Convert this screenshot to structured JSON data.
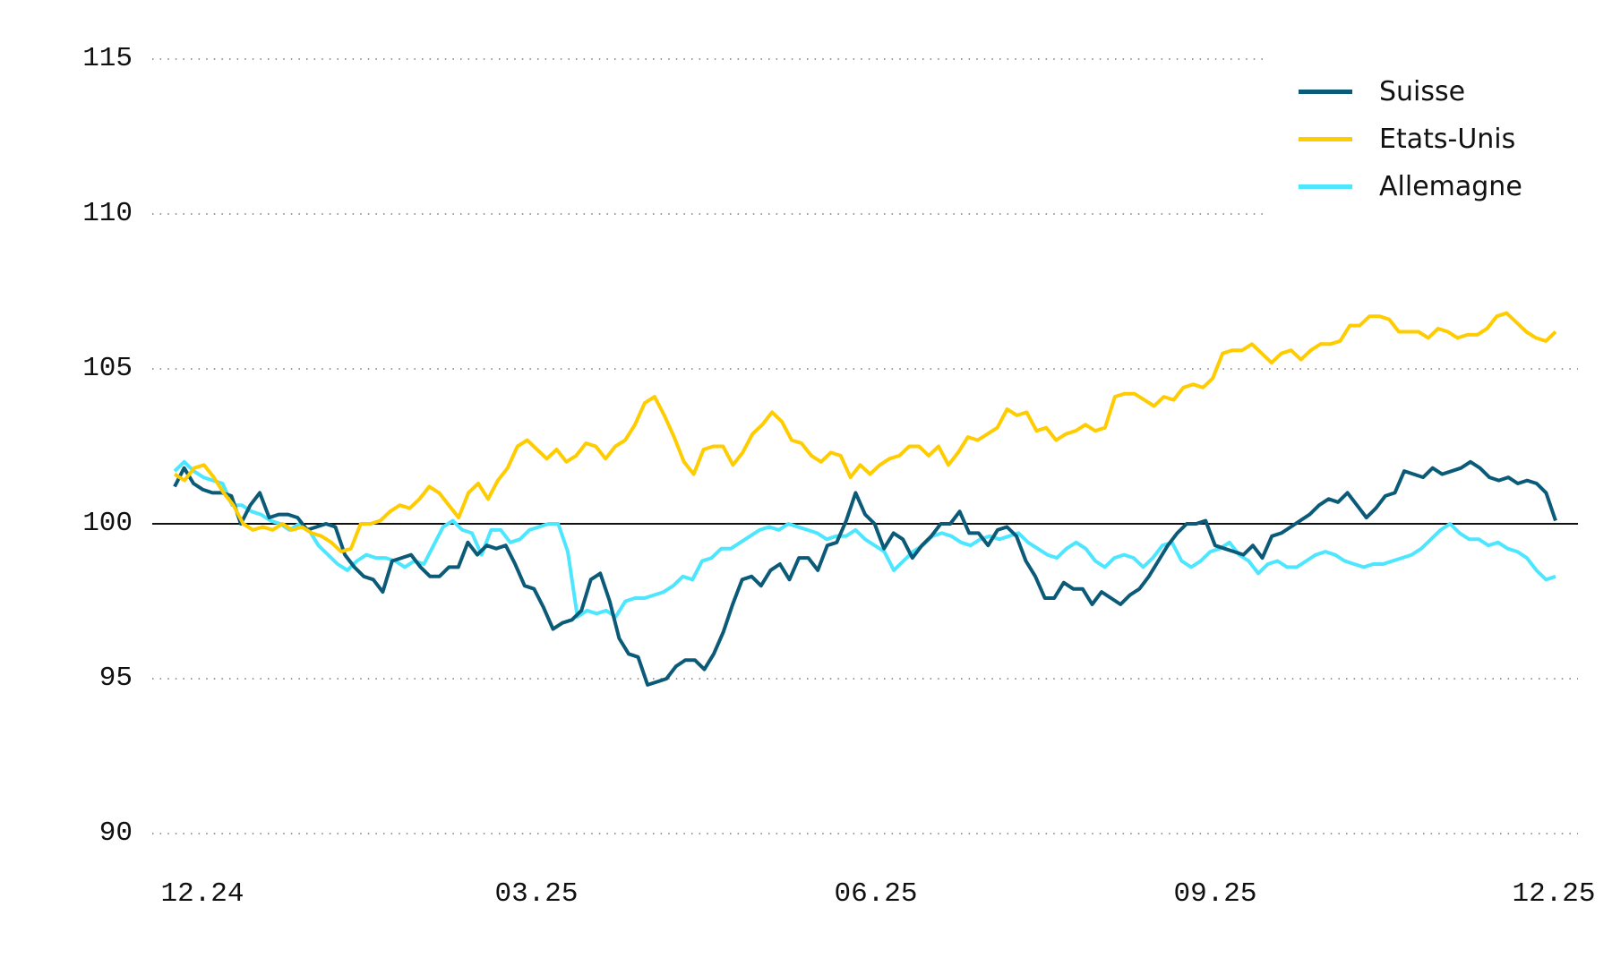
{
  "chart_data": {
    "type": "line",
    "title": "",
    "xlabel": "",
    "ylabel": "",
    "ylim": [
      90,
      115
    ],
    "yticks": [
      90,
      95,
      100,
      105,
      110,
      115
    ],
    "xticks": [
      "12.24",
      "03.25",
      "06.25",
      "09.25",
      "12.25"
    ],
    "reference_line": 100,
    "grid": "dotted horizontal",
    "legend_position": "top-right",
    "x_points": 140,
    "series": [
      {
        "name": "Suisse",
        "color": "#0b5b78",
        "values": [
          101.2,
          101.8,
          101.3,
          101.1,
          101.0,
          101.0,
          100.9,
          100.0,
          100.6,
          101.0,
          100.2,
          100.3,
          100.3,
          100.2,
          99.8,
          99.9,
          100.0,
          99.9,
          99.0,
          98.6,
          98.3,
          98.2,
          97.8,
          98.8,
          98.9,
          99.0,
          98.6,
          98.3,
          98.3,
          98.6,
          98.6,
          99.4,
          99.0,
          99.3,
          99.2,
          99.3,
          98.7,
          98.0,
          97.9,
          97.3,
          96.6,
          96.8,
          96.9,
          97.2,
          98.2,
          98.4,
          97.5,
          96.3,
          95.8,
          95.7,
          94.8,
          94.9,
          95.0,
          95.4,
          95.6,
          95.6,
          95.3,
          95.8,
          96.5,
          97.4,
          98.2,
          98.3,
          98.0,
          98.5,
          98.7,
          98.2,
          98.9,
          98.9,
          98.5,
          99.3,
          99.4,
          100.1,
          101.0,
          100.3,
          100.0,
          99.2,
          99.7,
          99.5,
          98.9,
          99.3,
          99.6,
          100.0,
          100.0,
          100.4,
          99.7,
          99.7,
          99.3,
          99.8,
          99.9,
          99.6,
          98.8,
          98.3,
          97.6,
          97.6,
          98.1,
          97.9,
          97.9,
          97.4,
          97.8,
          97.6,
          97.4,
          97.7,
          97.9,
          98.3,
          98.8,
          99.3,
          99.7,
          100.0,
          100.0,
          100.1,
          99.3,
          99.2,
          99.1,
          99.0,
          99.3,
          98.9,
          99.6,
          99.7,
          99.9,
          100.1,
          100.3,
          100.6,
          100.8,
          100.7,
          101.0,
          100.6,
          100.2,
          100.5,
          100.9,
          101.0,
          101.7,
          101.6,
          101.5,
          101.8,
          101.6,
          101.7,
          101.8,
          102.0,
          101.8,
          101.5,
          101.4,
          101.5,
          101.3,
          101.4,
          101.3,
          101.0,
          100.1
        ]
      },
      {
        "name": "Etats-Unis",
        "color": "#ffcc00",
        "values": [
          101.6,
          101.4,
          101.8,
          101.9,
          101.5,
          101.0,
          100.6,
          100.0,
          99.8,
          99.9,
          99.8,
          100.0,
          99.8,
          99.9,
          99.7,
          99.6,
          99.4,
          99.1,
          99.2,
          100.0,
          100.0,
          100.1,
          100.4,
          100.6,
          100.5,
          100.8,
          101.2,
          101.0,
          100.6,
          100.2,
          101.0,
          101.3,
          100.8,
          101.4,
          101.8,
          102.5,
          102.7,
          102.4,
          102.1,
          102.4,
          102.0,
          102.2,
          102.6,
          102.5,
          102.1,
          102.5,
          102.7,
          103.2,
          103.9,
          104.1,
          103.5,
          102.8,
          102.0,
          101.6,
          102.4,
          102.5,
          102.5,
          101.9,
          102.3,
          102.9,
          103.2,
          103.6,
          103.3,
          102.7,
          102.6,
          102.2,
          102.0,
          102.3,
          102.2,
          101.5,
          101.9,
          101.6,
          101.9,
          102.1,
          102.2,
          102.5,
          102.5,
          102.2,
          102.5,
          101.9,
          102.3,
          102.8,
          102.7,
          102.9,
          103.1,
          103.7,
          103.5,
          103.6,
          103.0,
          103.1,
          102.7,
          102.9,
          103.0,
          103.2,
          103.0,
          103.1,
          104.1,
          104.2,
          104.2,
          104.0,
          103.8,
          104.1,
          104.0,
          104.4,
          104.5,
          104.4,
          104.7,
          105.5,
          105.6,
          105.6,
          105.8,
          105.5,
          105.2,
          105.5,
          105.6,
          105.3,
          105.6,
          105.8,
          105.8,
          105.9,
          106.4,
          106.4,
          106.7,
          106.7,
          106.6,
          106.2,
          106.2,
          106.2,
          106.0,
          106.3,
          106.2,
          106.0,
          106.1,
          106.1,
          106.3,
          106.7,
          106.8,
          106.5,
          106.2,
          106.0,
          105.9,
          106.2
        ]
      },
      {
        "name": "Allemagne",
        "color": "#4de6ff",
        "values": [
          101.7,
          102.0,
          101.7,
          101.5,
          101.4,
          101.3,
          100.6,
          100.6,
          100.4,
          100.3,
          100.1,
          100.0,
          99.8,
          100.0,
          99.8,
          99.3,
          99.0,
          98.7,
          98.5,
          98.8,
          99.0,
          98.9,
          98.9,
          98.8,
          98.6,
          98.8,
          98.7,
          99.3,
          99.9,
          100.1,
          99.8,
          99.7,
          99.0,
          99.8,
          99.8,
          99.4,
          99.5,
          99.8,
          99.9,
          100.0,
          100.0,
          99.1,
          97.0,
          97.2,
          97.1,
          97.2,
          97.0,
          97.5,
          97.6,
          97.6,
          97.7,
          97.8,
          98.0,
          98.3,
          98.2,
          98.8,
          98.9,
          99.2,
          99.2,
          99.4,
          99.6,
          99.8,
          99.9,
          99.8,
          100.0,
          99.9,
          99.8,
          99.7,
          99.5,
          99.6,
          99.6,
          99.8,
          99.5,
          99.3,
          99.1,
          98.5,
          98.8,
          99.1,
          99.3,
          99.6,
          99.7,
          99.6,
          99.4,
          99.3,
          99.5,
          99.6,
          99.5,
          99.6,
          99.7,
          99.4,
          99.2,
          99.0,
          98.9,
          99.2,
          99.4,
          99.2,
          98.8,
          98.6,
          98.9,
          99.0,
          98.9,
          98.6,
          98.9,
          99.3,
          99.4,
          98.8,
          98.6,
          98.8,
          99.1,
          99.2,
          99.4,
          99.0,
          98.8,
          98.4,
          98.7,
          98.8,
          98.6,
          98.6,
          98.8,
          99.0,
          99.1,
          99.0,
          98.8,
          98.7,
          98.6,
          98.7,
          98.7,
          98.8,
          98.9,
          99.0,
          99.2,
          99.5,
          99.8,
          100.0,
          99.7,
          99.5,
          99.5,
          99.3,
          99.4,
          99.2,
          99.1,
          98.9,
          98.5,
          98.2,
          98.3
        ]
      }
    ]
  },
  "legend": {
    "items": [
      {
        "label": "Suisse",
        "color": "#0b5b78"
      },
      {
        "label": "Etats-Unis",
        "color": "#ffcc00"
      },
      {
        "label": "Allemagne",
        "color": "#4de6ff"
      }
    ]
  },
  "axes": {
    "y_labels": [
      "115",
      "110",
      "105",
      "100",
      "95",
      "90"
    ],
    "x_labels": [
      "12.24",
      "03.25",
      "06.25",
      "09.25",
      "12.25"
    ]
  }
}
